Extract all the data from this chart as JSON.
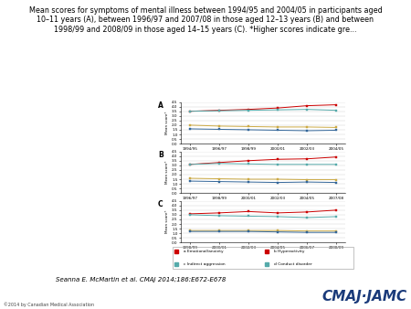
{
  "title": "Mean scores for symptoms of mental illness between 1994/95 and 2004/05 in participants aged\n10–11 years (A), between 1996/97 and 2007/08 in those aged 12–13 years (B) and between\n1998/99 and 2008/09 in those aged 14–15 years (C). *Higher scores indicate gre...",
  "attribution": "Seanna E. McMartin et al. CMAJ 2014;186:E672-E678",
  "background_color": "#ffffff",
  "subplots": [
    {
      "label": "A",
      "x_labels": [
        "1994/95",
        "1996/97",
        "1998/99",
        "2000/01",
        "2002/03",
        "2004/05"
      ],
      "series": [
        {
          "name": "a Emotional/anxiety",
          "color": "#cc0000",
          "marker": "s",
          "values": [
            3.5,
            3.6,
            3.7,
            3.85,
            4.1,
            4.2
          ]
        },
        {
          "name": "c Indirect aggression",
          "color": "#55aaaa",
          "marker": "s",
          "values": [
            3.5,
            3.55,
            3.6,
            3.65,
            3.7,
            3.6
          ]
        },
        {
          "name": null,
          "color": "#ccaa44",
          "marker": "s",
          "values": [
            2.0,
            1.9,
            1.85,
            1.8,
            1.8,
            1.75
          ]
        },
        {
          "name": null,
          "color": "#336699",
          "marker": "s",
          "values": [
            1.6,
            1.55,
            1.5,
            1.45,
            1.4,
            1.45
          ]
        }
      ],
      "ylim": [
        0.0,
        4.5
      ],
      "yticks": [
        0.0,
        0.5,
        1.0,
        1.5,
        2.0,
        2.5,
        3.0,
        3.5,
        4.0,
        4.5
      ]
    },
    {
      "label": "B",
      "x_labels": [
        "1996/97",
        "1998/99",
        "2000/01",
        "2002/03",
        "2004/05",
        "2007/08"
      ],
      "series": [
        {
          "name": "b Hyperactivity",
          "color": "#cc0000",
          "marker": "s",
          "values": [
            3.1,
            3.3,
            3.5,
            3.65,
            3.7,
            3.9
          ]
        },
        {
          "name": "d Conduct disorder",
          "color": "#55aaaa",
          "marker": "s",
          "values": [
            3.1,
            3.2,
            3.15,
            3.1,
            3.1,
            3.1
          ]
        },
        {
          "name": null,
          "color": "#ccaa44",
          "marker": "s",
          "values": [
            1.6,
            1.55,
            1.5,
            1.5,
            1.45,
            1.45
          ]
        },
        {
          "name": null,
          "color": "#336699",
          "marker": "s",
          "values": [
            1.3,
            1.25,
            1.2,
            1.15,
            1.2,
            1.15
          ]
        }
      ],
      "ylim": [
        0.0,
        4.5
      ],
      "yticks": [
        0.0,
        0.5,
        1.0,
        1.5,
        2.0,
        2.5,
        3.0,
        3.5,
        4.0,
        4.5
      ]
    },
    {
      "label": "C",
      "x_labels": [
        "1998/99",
        "2000/01",
        "2002/03",
        "2004/05",
        "2006/07",
        "2008/09"
      ],
      "series": [
        {
          "name": null,
          "color": "#cc0000",
          "marker": "s",
          "values": [
            3.1,
            3.2,
            3.35,
            3.2,
            3.3,
            3.5
          ]
        },
        {
          "name": null,
          "color": "#55aaaa",
          "marker": "s",
          "values": [
            3.0,
            2.9,
            2.85,
            2.8,
            2.7,
            2.8
          ]
        },
        {
          "name": null,
          "color": "#ccaa44",
          "marker": "s",
          "values": [
            1.3,
            1.3,
            1.3,
            1.3,
            1.25,
            1.25
          ]
        },
        {
          "name": null,
          "color": "#336699",
          "marker": "s",
          "values": [
            1.2,
            1.2,
            1.2,
            1.15,
            1.1,
            1.1
          ]
        }
      ],
      "ylim": [
        0.0,
        4.5
      ],
      "yticks": [
        0.0,
        0.5,
        1.0,
        1.5,
        2.0,
        2.5,
        3.0,
        3.5,
        4.0,
        4.5
      ]
    }
  ],
  "legend_items": [
    {
      "label": "a Emotional/anxiety",
      "color": "#cc0000"
    },
    {
      "label": "b Hyperactivity",
      "color": "#cc0000"
    },
    {
      "label": "c Indirect aggression",
      "color": "#55aaaa"
    },
    {
      "label": "d Conduct disorder",
      "color": "#55aaaa"
    }
  ],
  "ylabel": "Mean score*"
}
